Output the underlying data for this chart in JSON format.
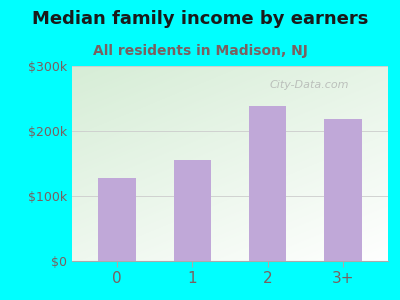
{
  "title": "Median family income by earners",
  "subtitle": "All residents in Madison, NJ",
  "categories": [
    "0",
    "1",
    "2",
    "3+"
  ],
  "values": [
    128000,
    155000,
    238000,
    218000
  ],
  "bar_color": "#c0a8d8",
  "background_outer": "#00ffff",
  "title_color": "#1a1a1a",
  "subtitle_color": "#7a6060",
  "tick_label_color": "#7a6060",
  "ylim": [
    0,
    300000
  ],
  "yticks": [
    0,
    100000,
    200000,
    300000
  ],
  "ytick_labels": [
    "$0",
    "$100k",
    "$200k",
    "$300k"
  ],
  "title_fontsize": 13,
  "subtitle_fontsize": 10,
  "watermark": "City-Data.com",
  "grid_color": "#cccccc",
  "gradient_top": "#d6ecd6",
  "gradient_bottom": "#f8fff8"
}
